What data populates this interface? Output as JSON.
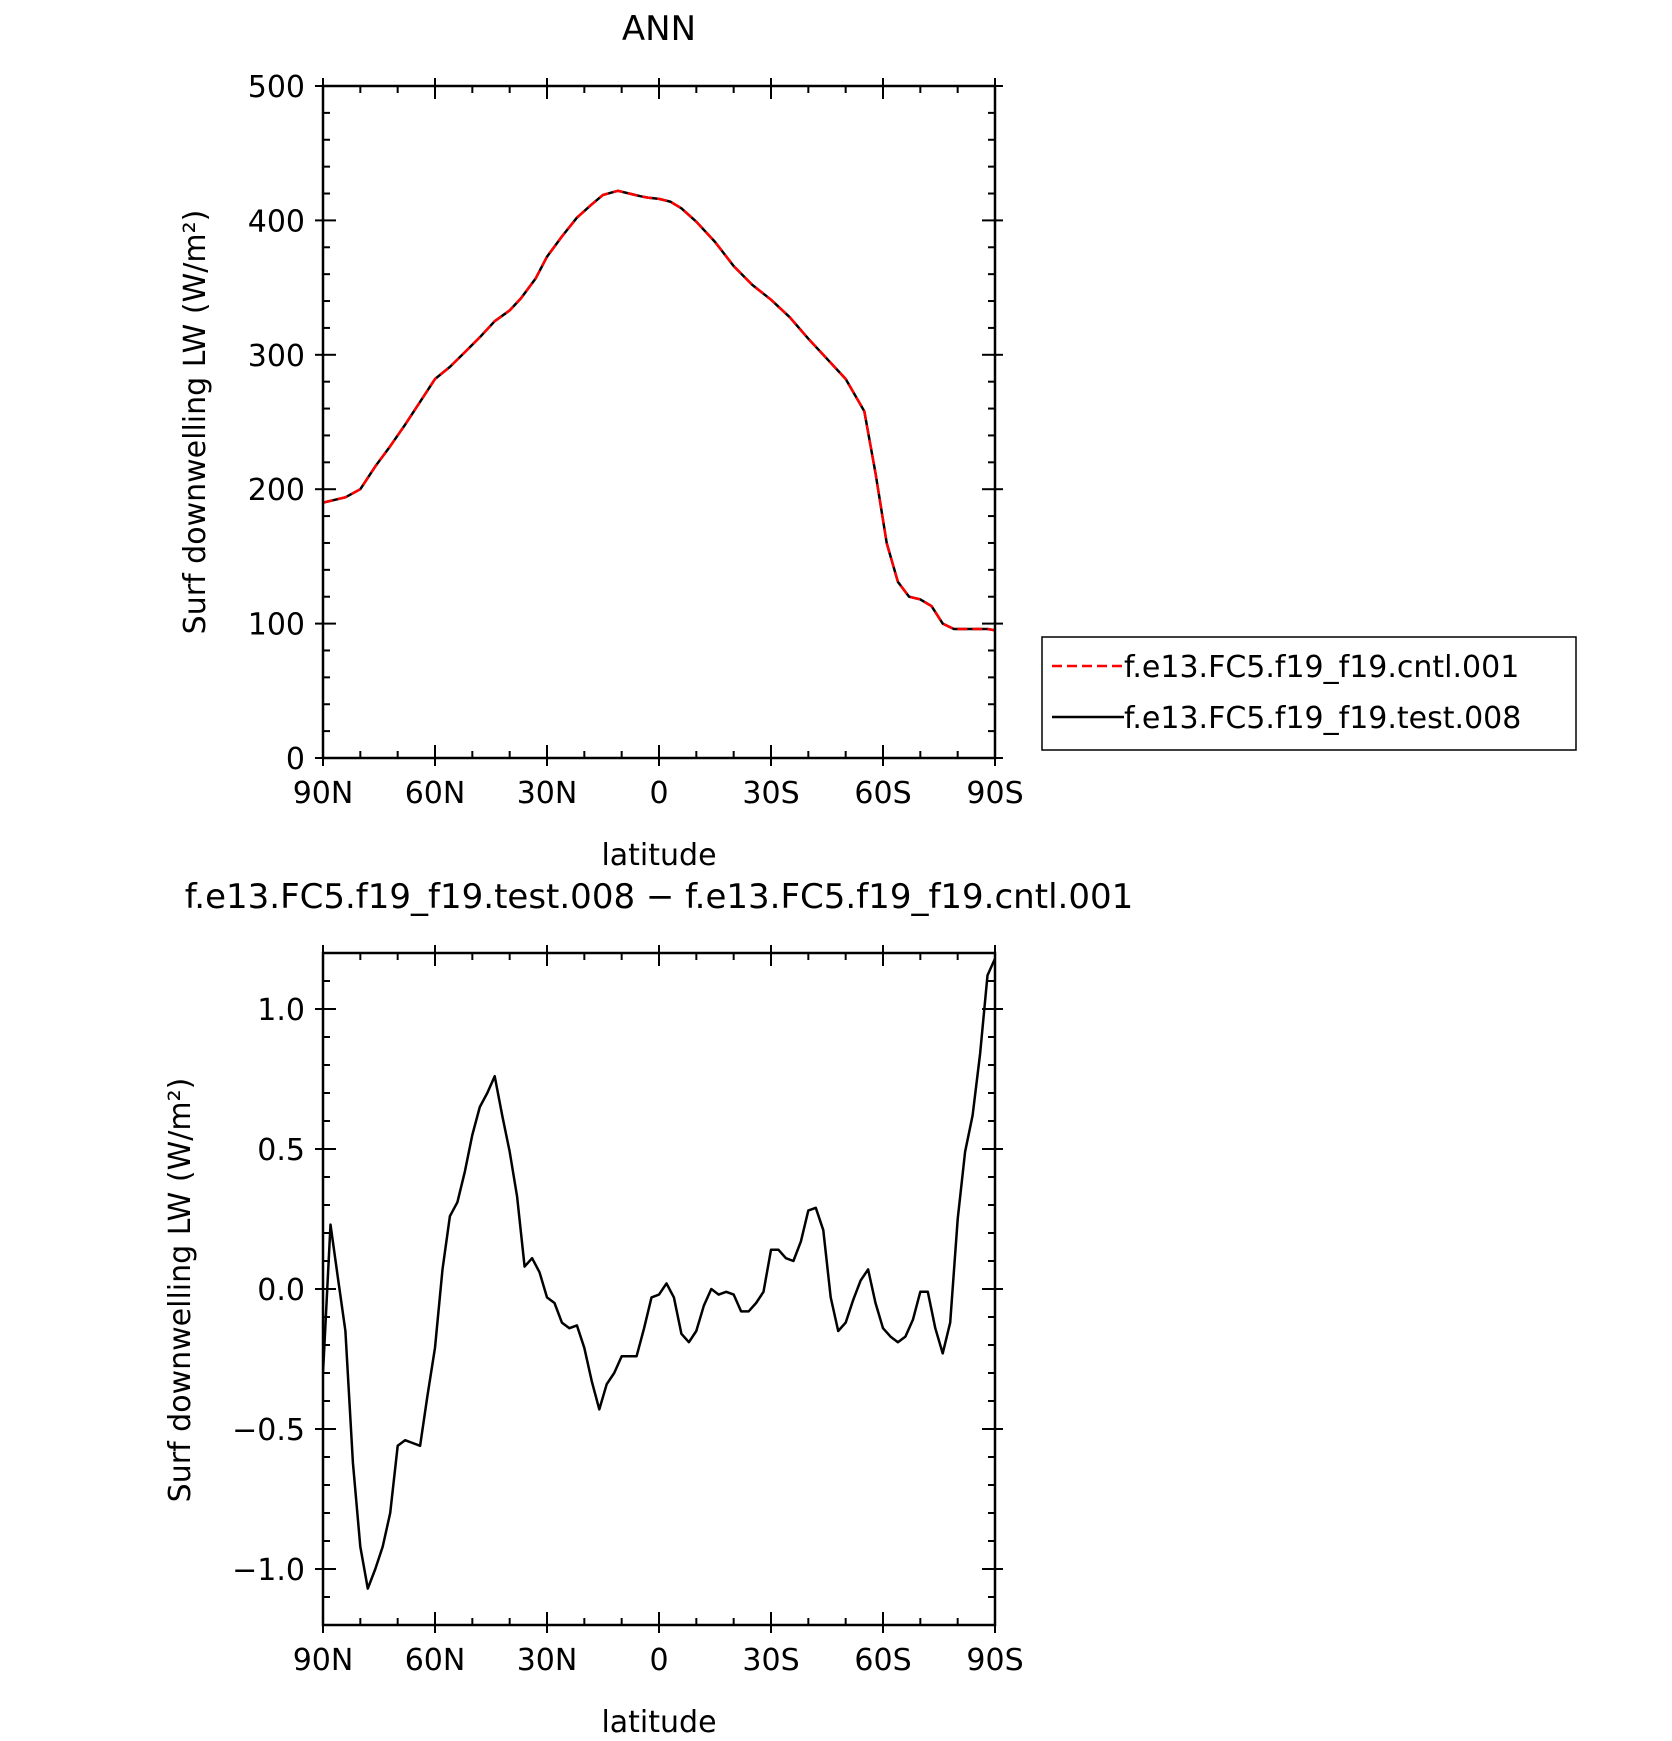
{
  "chart_data": [
    {
      "type": "line",
      "title": "ANN",
      "xlabel": "latitude",
      "ylabel": "Surf downwelling LW (W/m²)",
      "xlim": [
        90,
        -90
      ],
      "ylim": [
        0,
        500
      ],
      "x_tick_labels": [
        "90N",
        "60N",
        "30N",
        "0",
        "30S",
        "60S",
        "90S"
      ],
      "y_tick_labels": [
        "0",
        "100",
        "200",
        "300",
        "400",
        "500"
      ],
      "legend_placement": "right",
      "series": [
        {
          "name": "f.e13.FC5.f19_f19.cntl.001",
          "color": "#ff0000",
          "dash": "dashed",
          "x": [
            90,
            84,
            80,
            76,
            72,
            68,
            64,
            60,
            56,
            52,
            48,
            44,
            40,
            37,
            33,
            30,
            26,
            22,
            18,
            15,
            11,
            8,
            5,
            3,
            0,
            -3,
            -6,
            -10,
            -15,
            -20,
            -25,
            -30,
            -35,
            -40,
            -45,
            -50,
            -55,
            -58,
            -61,
            -64,
            -67,
            -70,
            -73,
            -76,
            -79,
            -82,
            -85,
            -88,
            -90
          ],
          "values": [
            190,
            194,
            200,
            217,
            232,
            248,
            265,
            282,
            291,
            302,
            313,
            325,
            333,
            342,
            357,
            373,
            388,
            402,
            412,
            419,
            422,
            420,
            418,
            417,
            416,
            414,
            409,
            399,
            384,
            366,
            352,
            341,
            328,
            312,
            297,
            282,
            258,
            212,
            160,
            131,
            120,
            118,
            113,
            100,
            96,
            96,
            96,
            96,
            95
          ]
        },
        {
          "name": "f.e13.FC5.f19_f19.test.008",
          "color": "#000000",
          "dash": "solid",
          "x": [
            90,
            84,
            80,
            76,
            72,
            68,
            64,
            60,
            56,
            52,
            48,
            44,
            40,
            37,
            33,
            30,
            26,
            22,
            18,
            15,
            11,
            8,
            5,
            3,
            0,
            -3,
            -6,
            -10,
            -15,
            -20,
            -25,
            -30,
            -35,
            -40,
            -45,
            -50,
            -55,
            -58,
            -61,
            -64,
            -67,
            -70,
            -73,
            -76,
            -79,
            -82,
            -85,
            -88,
            -90
          ],
          "values": [
            190,
            194,
            200,
            217,
            232,
            248,
            265,
            282,
            291,
            302,
            313,
            325,
            333,
            342,
            357,
            373,
            388,
            402,
            412,
            419,
            422,
            420,
            418,
            417,
            416,
            414,
            409,
            399,
            384,
            366,
            352,
            341,
            328,
            312,
            297,
            282,
            258,
            212,
            160,
            131,
            120,
            118,
            113,
            100,
            96,
            96,
            96,
            96,
            95
          ]
        }
      ]
    },
    {
      "type": "line",
      "title": "f.e13.FC5.f19_f19.test.008 − f.e13.FC5.f19_f19.cntl.001",
      "xlabel": "latitude",
      "ylabel": "Surf downwelling LW (W/m²)",
      "xlim": [
        90,
        -90
      ],
      "ylim": [
        -1.2,
        1.2
      ],
      "x_tick_labels": [
        "90N",
        "60N",
        "30N",
        "0",
        "30S",
        "60S",
        "90S"
      ],
      "y_tick_labels": [
        "−1.0",
        "−0.5",
        "0.0",
        "0.5",
        "1.0"
      ],
      "series": [
        {
          "color": "#000000",
          "x": [
            90,
            88,
            86,
            84,
            82,
            80,
            78,
            76,
            74,
            72,
            70,
            68,
            66,
            64,
            62,
            60,
            58,
            56,
            54,
            52,
            50,
            48,
            46,
            44,
            42,
            40,
            38,
            36,
            34,
            32,
            30,
            28,
            26,
            24,
            22,
            20,
            18,
            16,
            14,
            12,
            10,
            8,
            6,
            4,
            2,
            0,
            -2,
            -4,
            -6,
            -8,
            -10,
            -12,
            -14,
            -16,
            -18,
            -20,
            -22,
            -24,
            -26,
            -28,
            -30,
            -32,
            -34,
            -36,
            -38,
            -40,
            -42,
            -44,
            -46,
            -48,
            -50,
            -52,
            -54,
            -56,
            -58,
            -60,
            -62,
            -64,
            -66,
            -68,
            -70,
            -72,
            -74,
            -76,
            -78,
            -80,
            -82,
            -84,
            -86,
            -88,
            -90
          ],
          "values": [
            -0.3,
            0.23,
            0.04,
            -0.15,
            -0.62,
            -0.92,
            -1.07,
            -1.0,
            -0.92,
            -0.8,
            -0.56,
            -0.54,
            -0.55,
            -0.56,
            -0.38,
            -0.21,
            0.07,
            0.26,
            0.31,
            0.42,
            0.55,
            0.65,
            0.7,
            0.76,
            0.62,
            0.49,
            0.33,
            0.08,
            0.11,
            0.06,
            -0.03,
            -0.05,
            -0.12,
            -0.14,
            -0.13,
            -0.21,
            -0.33,
            -0.43,
            -0.34,
            -0.3,
            -0.24,
            -0.24,
            -0.24,
            -0.14,
            -0.03,
            -0.02,
            0.02,
            -0.03,
            -0.16,
            -0.19,
            -0.15,
            -0.06,
            0.0,
            -0.02,
            -0.01,
            -0.02,
            -0.08,
            -0.08,
            -0.05,
            -0.01,
            0.14,
            0.14,
            0.11,
            0.1,
            0.17,
            0.28,
            0.29,
            0.21,
            -0.03,
            -0.15,
            -0.12,
            -0.04,
            0.03,
            0.07,
            -0.05,
            -0.14,
            -0.17,
            -0.19,
            -0.17,
            -0.11,
            -0.01,
            -0.01,
            -0.14,
            -0.23,
            -0.12,
            0.25,
            0.49,
            0.62,
            0.84,
            1.12,
            1.18
          ]
        }
      ]
    }
  ]
}
